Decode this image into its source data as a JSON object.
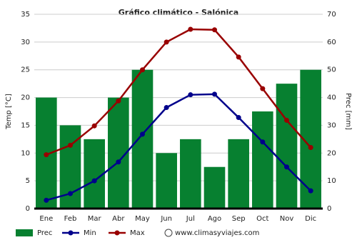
{
  "chart_data": {
    "type": "combo",
    "title": "Gráfico climático - Salónica",
    "categories": [
      "Ene",
      "Feb",
      "Mar",
      "Abr",
      "May",
      "Jun",
      "Jul",
      "Ago",
      "Sep",
      "Oct",
      "Nov",
      "Dic"
    ],
    "ylabel": "Temp [°C]",
    "y2label": "Prec [mm]",
    "ylim": [
      0,
      35
    ],
    "yticks": [
      0,
      5,
      10,
      15,
      20,
      25,
      30,
      35
    ],
    "y2lim": [
      0,
      70
    ],
    "y2ticks": [
      0,
      10,
      20,
      30,
      40,
      50,
      60,
      70
    ],
    "grid": true,
    "series": [
      {
        "name": "Prec",
        "type": "bar",
        "axis": "y2",
        "color": "#078030",
        "values": [
          40,
          30,
          25,
          40,
          50,
          20,
          25,
          15,
          25,
          35,
          45,
          50
        ]
      },
      {
        "name": "Min",
        "type": "line",
        "color": "#00008b",
        "values": [
          1.5,
          2.7,
          5.0,
          8.4,
          13.4,
          18.2,
          20.5,
          20.6,
          16.4,
          12.0,
          7.5,
          3.2
        ]
      },
      {
        "name": "Max",
        "type": "line",
        "color": "#990000",
        "values": [
          9.7,
          11.4,
          14.9,
          19.4,
          25.0,
          30.0,
          32.3,
          32.2,
          27.3,
          21.6,
          15.9,
          11.0
        ]
      }
    ],
    "source": "www.climasyviajes.com"
  }
}
